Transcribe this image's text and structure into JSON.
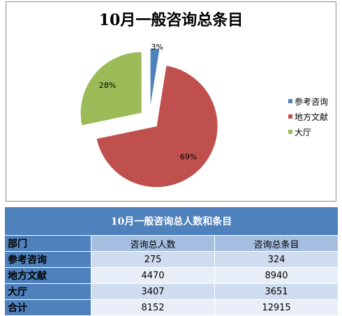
{
  "chart_data": {
    "type": "pie",
    "title": "10月一般咨询总条目",
    "categories": [
      "参考咨询",
      "地方文献",
      "大厅"
    ],
    "values": [
      324,
      8940,
      3651
    ],
    "percent_labels": [
      "3%",
      "69%",
      "28%"
    ],
    "colors": [
      "#4f81bd",
      "#c0504d",
      "#9bbb59"
    ],
    "exploded": true,
    "legend_position": "right"
  },
  "table": {
    "title": "10月一般咨询总人数和条目",
    "headers": [
      "部门",
      "咨询总人数",
      "咨询总条目"
    ],
    "rows": [
      [
        "参考咨询",
        "275",
        "324"
      ],
      [
        "地方文献",
        "4470",
        "8940"
      ],
      [
        "大厅",
        "3407",
        "3651"
      ],
      [
        "合计",
        "8152",
        "12915"
      ]
    ]
  }
}
